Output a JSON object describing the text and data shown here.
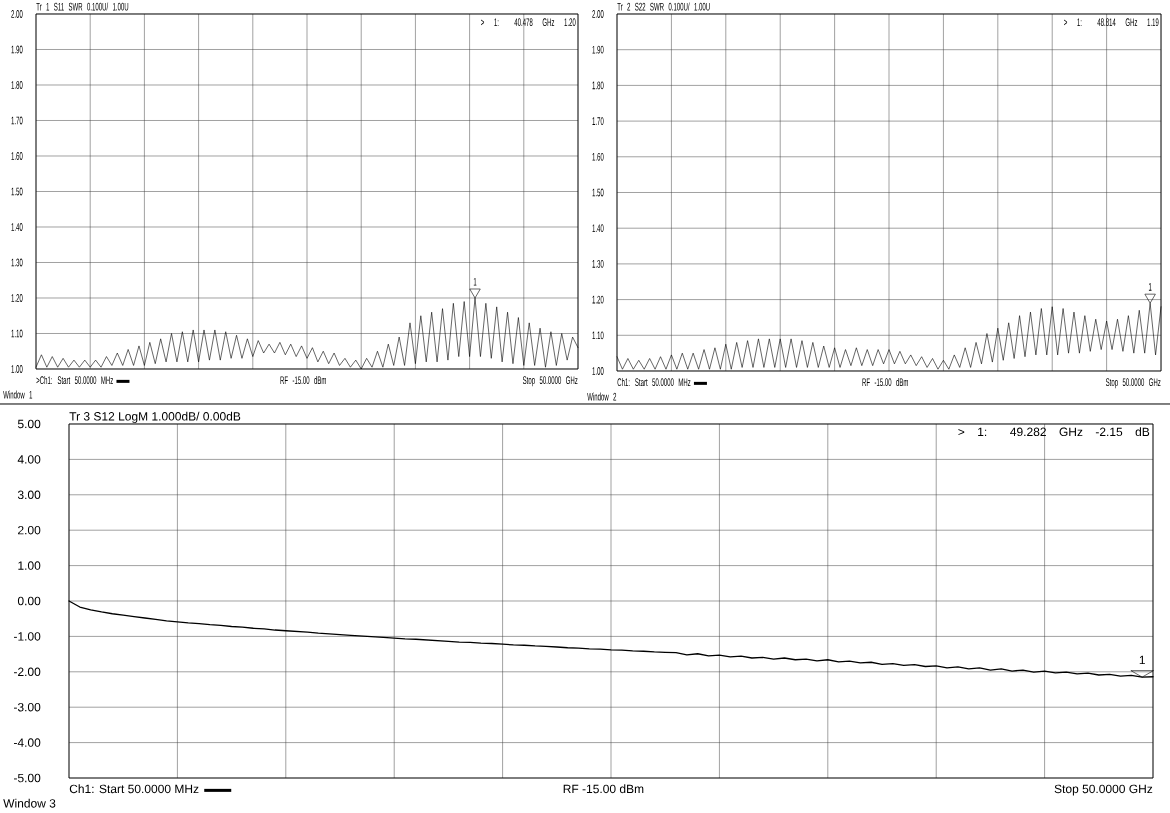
{
  "chart_data": [
    {
      "type": "line",
      "title": "Tr 1 S11 SWR 0.100U/ 1.00U",
      "categories": [
        null,
        null,
        null,
        null,
        null,
        null,
        null,
        null,
        null,
        null,
        null,
        null,
        null,
        null,
        null,
        null,
        null,
        null,
        null,
        null,
        null,
        null,
        null,
        null,
        null,
        null,
        null,
        null,
        null,
        null,
        null,
        null,
        null,
        null,
        null,
        null,
        null,
        null,
        null,
        null,
        null,
        null,
        null,
        null,
        null,
        null,
        null,
        null,
        null,
        null,
        null,
        null,
        null,
        null,
        null,
        null,
        null,
        null,
        null,
        null,
        null,
        null,
        null,
        null,
        null,
        null,
        null,
        null,
        null,
        null,
        null,
        null,
        null,
        null,
        null,
        null,
        null,
        null,
        null,
        null,
        null,
        null,
        null,
        null,
        null,
        null,
        null,
        null,
        null,
        null,
        null,
        null,
        null,
        null,
        null,
        null,
        null,
        null,
        null,
        null,
        null
      ],
      "series": [
        {
          "color": "#000000",
          "values": [
            1.005,
            1.04,
            1.005,
            1.035,
            1.005,
            1.03,
            1.005,
            1.025,
            1.005,
            1.025,
            1.005,
            1.025,
            1.005,
            1.035,
            1.01,
            1.045,
            1.01,
            1.055,
            1.01,
            1.065,
            1.01,
            1.075,
            1.015,
            1.085,
            1.02,
            1.1,
            1.02,
            1.105,
            1.02,
            1.11,
            1.02,
            1.11,
            1.025,
            1.11,
            1.025,
            1.105,
            1.03,
            1.095,
            1.03,
            1.085,
            1.035,
            1.08,
            1.045,
            1.07,
            1.045,
            1.075,
            1.04,
            1.07,
            1.035,
            1.065,
            1.03,
            1.06,
            1.02,
            1.05,
            1.015,
            1.045,
            1.01,
            1.03,
            1.005,
            1.025,
            1.0,
            1.03,
            1.005,
            1.05,
            1.005,
            1.07,
            1.01,
            1.09,
            1.01,
            1.13,
            1.015,
            1.15,
            1.02,
            1.16,
            1.02,
            1.17,
            1.025,
            1.185,
            1.035,
            1.19,
            1.035,
            1.2,
            1.035,
            1.185,
            1.03,
            1.175,
            1.02,
            1.16,
            1.015,
            1.145,
            1.01,
            1.13,
            1.01,
            1.115,
            1.005,
            1.105,
            1.01,
            1.1,
            1.025,
            1.09,
            1.06
          ]
        }
      ],
      "ylim": [
        1.0,
        2.0
      ],
      "yticks": [
        {
          "value": 1.0,
          "label": "1.00"
        },
        {
          "value": 1.1,
          "label": "1.10"
        },
        {
          "value": 1.2,
          "label": "1.20"
        },
        {
          "value": 1.3,
          "label": "1.30"
        },
        {
          "value": 1.4,
          "label": "1.40"
        },
        {
          "value": 1.5,
          "label": "1.50"
        },
        {
          "value": 1.6,
          "label": "1.60"
        },
        {
          "value": 1.7,
          "label": "1.70"
        },
        {
          "value": 1.8,
          "label": "1.80"
        },
        {
          "value": 1.9,
          "label": "1.90"
        },
        {
          "value": 2.0,
          "label": "2.00"
        }
      ],
      "tick_labels": "y",
      "grid": true,
      "annotations": [
        {
          "text": "1",
          "y": 1.2
        },
        "> 1: 40.478 GHz 1.20",
        ">Ch1: Start 50.0000 MHz",
        "RF -15.00 dBm",
        "Stop 50.0000 GHz",
        "Window 1"
      ]
    },
    {
      "type": "line",
      "title": "Tr 2 S22 SWR 0.100U/ 1.00U",
      "categories": [
        null,
        null,
        null,
        null,
        null,
        null,
        null,
        null,
        null,
        null,
        null,
        null,
        null,
        null,
        null,
        null,
        null,
        null,
        null,
        null,
        null,
        null,
        null,
        null,
        null,
        null,
        null,
        null,
        null,
        null,
        null,
        null,
        null,
        null,
        null,
        null,
        null,
        null,
        null,
        null,
        null,
        null,
        null,
        null,
        null,
        null,
        null,
        null,
        null,
        null,
        null,
        null,
        null,
        null,
        null,
        null,
        null,
        null,
        null,
        null,
        null,
        null,
        null,
        null,
        null,
        null,
        null,
        null,
        null,
        null,
        null,
        null,
        null,
        null,
        null,
        null,
        null,
        null,
        null,
        null,
        null,
        null,
        null,
        null,
        null,
        null,
        null,
        null,
        null,
        null,
        null,
        null,
        null,
        null,
        null,
        null,
        null,
        null,
        null,
        null,
        null
      ],
      "series": [
        {
          "color": "#000000",
          "values": [
            1.04,
            1.005,
            1.035,
            1.005,
            1.03,
            1.005,
            1.035,
            1.005,
            1.04,
            1.005,
            1.045,
            1.005,
            1.05,
            1.005,
            1.05,
            1.005,
            1.06,
            1.005,
            1.065,
            1.005,
            1.075,
            1.005,
            1.08,
            1.01,
            1.085,
            1.01,
            1.09,
            1.01,
            1.09,
            1.01,
            1.09,
            1.01,
            1.09,
            1.01,
            1.085,
            1.01,
            1.08,
            1.01,
            1.07,
            1.01,
            1.065,
            1.01,
            1.06,
            1.015,
            1.065,
            1.015,
            1.06,
            1.015,
            1.06,
            1.02,
            1.06,
            1.02,
            1.055,
            1.02,
            1.045,
            1.015,
            1.04,
            1.01,
            1.035,
            1.005,
            1.03,
            1.005,
            1.045,
            1.01,
            1.065,
            1.01,
            1.08,
            1.02,
            1.105,
            1.025,
            1.12,
            1.03,
            1.135,
            1.035,
            1.155,
            1.04,
            1.165,
            1.045,
            1.175,
            1.045,
            1.18,
            1.045,
            1.175,
            1.05,
            1.165,
            1.05,
            1.155,
            1.055,
            1.145,
            1.06,
            1.14,
            1.06,
            1.145,
            1.055,
            1.155,
            1.05,
            1.17,
            1.05,
            1.19,
            1.045,
            1.18
          ]
        }
      ],
      "ylim": [
        1.0,
        2.0
      ],
      "yticks": [
        {
          "value": 1.0,
          "label": "1.00"
        },
        {
          "value": 1.1,
          "label": "1.10"
        },
        {
          "value": 1.2,
          "label": "1.20"
        },
        {
          "value": 1.3,
          "label": "1.30"
        },
        {
          "value": 1.4,
          "label": "1.40"
        },
        {
          "value": 1.5,
          "label": "1.50"
        },
        {
          "value": 1.6,
          "label": "1.60"
        },
        {
          "value": 1.7,
          "label": "1.70"
        },
        {
          "value": 1.8,
          "label": "1.80"
        },
        {
          "value": 1.9,
          "label": "1.90"
        },
        {
          "value": 2.0,
          "label": "2.00"
        }
      ],
      "tick_labels": "y",
      "grid": true,
      "annotations": [
        {
          "text": "1",
          "y": 1.19
        },
        "> 1: 48.814 GHz 1.19",
        "Ch1: Start 50.0000 MHz",
        "RF -15.00 dBm",
        "Stop 50.0000 GHz",
        "Window 2"
      ]
    },
    {
      "type": "line",
      "title": "Tr 3 S12 LogM 1.000dB/ 0.00dB",
      "categories": [
        null,
        null,
        null,
        null,
        null,
        null,
        null,
        null,
        null,
        null,
        null,
        null,
        null,
        null,
        null,
        null,
        null,
        null,
        null,
        null,
        null,
        null,
        null,
        null,
        null,
        null,
        null,
        null,
        null,
        null,
        null,
        null,
        null,
        null,
        null,
        null,
        null,
        null,
        null,
        null,
        null,
        null,
        null,
        null,
        null,
        null,
        null,
        null,
        null,
        null,
        null,
        null,
        null,
        null,
        null,
        null,
        null,
        null,
        null,
        null,
        null,
        null,
        null,
        null,
        null,
        null,
        null,
        null,
        null,
        null,
        null,
        null,
        null,
        null,
        null,
        null,
        null,
        null,
        null,
        null,
        null,
        null,
        null,
        null,
        null,
        null,
        null,
        null,
        null,
        null,
        null,
        null,
        null,
        null,
        null,
        null,
        null,
        null,
        null,
        null,
        null
      ],
      "series": [
        {
          "color": "#000000",
          "values": [
            0,
            -0.17,
            -0.25,
            -0.31,
            -0.36,
            -0.4,
            -0.44,
            -0.48,
            -0.52,
            -0.56,
            -0.59,
            -0.62,
            -0.64,
            -0.67,
            -0.69,
            -0.72,
            -0.74,
            -0.77,
            -0.79,
            -0.82,
            -0.84,
            -0.86,
            -0.88,
            -0.91,
            -0.93,
            -0.95,
            -0.97,
            -0.99,
            -1.01,
            -1.03,
            -1.05,
            -1.07,
            -1.08,
            -1.1,
            -1.12,
            -1.14,
            -1.16,
            -1.17,
            -1.19,
            -1.2,
            -1.22,
            -1.24,
            -1.25,
            -1.27,
            -1.28,
            -1.3,
            -1.32,
            -1.33,
            -1.35,
            -1.36,
            -1.38,
            -1.39,
            -1.41,
            -1.42,
            -1.44,
            -1.45,
            -1.46,
            -1.52,
            -1.49,
            -1.55,
            -1.53,
            -1.58,
            -1.56,
            -1.61,
            -1.59,
            -1.64,
            -1.61,
            -1.66,
            -1.64,
            -1.69,
            -1.66,
            -1.72,
            -1.7,
            -1.75,
            -1.73,
            -1.79,
            -1.77,
            -1.82,
            -1.8,
            -1.85,
            -1.83,
            -1.89,
            -1.86,
            -1.92,
            -1.89,
            -1.95,
            -1.92,
            -1.98,
            -1.95,
            -2.01,
            -1.98,
            -2.03,
            -2.01,
            -2.06,
            -2.04,
            -2.09,
            -2.07,
            -2.12,
            -2.1,
            -2.15,
            -2.14
          ]
        }
      ],
      "ylim": [
        -5,
        5
      ],
      "yticks": [
        {
          "value": -5,
          "label": "-5.00"
        },
        {
          "value": -4,
          "label": "-4.00"
        },
        {
          "value": -3,
          "label": "-3.00"
        },
        {
          "value": -2,
          "label": "-2.00"
        },
        {
          "value": -1,
          "label": "-1.00"
        },
        {
          "value": 0,
          "label": "0.00"
        },
        {
          "value": 1,
          "label": "1.00"
        },
        {
          "value": 2,
          "label": "2.00"
        },
        {
          "value": 3,
          "label": "3.00"
        },
        {
          "value": 4,
          "label": "4.00"
        },
        {
          "value": 5,
          "label": "5.00"
        }
      ],
      "tick_labels": "y",
      "grid": true,
      "annotations": [
        {
          "text": "1",
          "y": -2.15
        },
        "> 1: 49.282 GHz -2.15 dB",
        "Ch1: Start 50.0000 MHz",
        "RF -15.00 dBm",
        "Stop 50.0000 GHz",
        "Window 3"
      ]
    }
  ]
}
